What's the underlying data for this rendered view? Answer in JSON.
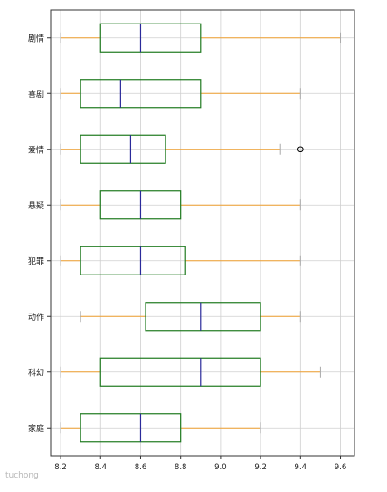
{
  "chart_data": {
    "type": "boxplot",
    "orientation": "horizontal",
    "title": "",
    "xlabel": "",
    "ylabel": "",
    "xlim": [
      8.15,
      9.67
    ],
    "x_ticks": [
      8.2,
      8.4,
      8.6,
      8.8,
      9.0,
      9.2,
      9.4,
      9.6
    ],
    "x_tick_labels": [
      "8.2",
      "8.4",
      "8.6",
      "8.8",
      "9.0",
      "9.2",
      "9.4",
      "9.6"
    ],
    "grid": true,
    "categories": [
      "剧情",
      "喜剧",
      "爱情",
      "悬疑",
      "犯罪",
      "动作",
      "科幻",
      "家庭"
    ],
    "boxes": [
      {
        "category": "剧情",
        "whisker_low": 8.2,
        "q1": 8.4,
        "median": 8.6,
        "q3": 8.9,
        "whisker_high": 9.6,
        "outliers": []
      },
      {
        "category": "喜剧",
        "whisker_low": 8.2,
        "q1": 8.3,
        "median": 8.5,
        "q3": 8.9,
        "whisker_high": 9.4,
        "outliers": []
      },
      {
        "category": "爱情",
        "whisker_low": 8.2,
        "q1": 8.3,
        "median": 8.55,
        "q3": 8.725,
        "whisker_high": 9.3,
        "outliers": [
          9.4
        ]
      },
      {
        "category": "悬疑",
        "whisker_low": 8.2,
        "q1": 8.4,
        "median": 8.6,
        "q3": 8.8,
        "whisker_high": 9.4,
        "outliers": []
      },
      {
        "category": "犯罪",
        "whisker_low": 8.2,
        "q1": 8.3,
        "median": 8.6,
        "q3": 8.825,
        "whisker_high": 9.4,
        "outliers": []
      },
      {
        "category": "动作",
        "whisker_low": 8.3,
        "q1": 8.625,
        "median": 8.9,
        "q3": 9.2,
        "whisker_high": 9.4,
        "outliers": []
      },
      {
        "category": "科幻",
        "whisker_low": 8.2,
        "q1": 8.4,
        "median": 8.9,
        "q3": 9.2,
        "whisker_high": 9.5,
        "outliers": []
      },
      {
        "category": "家庭",
        "whisker_low": 8.2,
        "q1": 8.3,
        "median": 8.6,
        "q3": 8.8,
        "whisker_high": 9.2,
        "outliers": []
      }
    ],
    "colors": {
      "box": "#1f7a1f",
      "median": "#2a2a9a",
      "whisker": "#f0a030",
      "grid": "#cfcfcf",
      "axes": "#333333",
      "outlier": "#000000"
    }
  },
  "watermark": "tuchong"
}
